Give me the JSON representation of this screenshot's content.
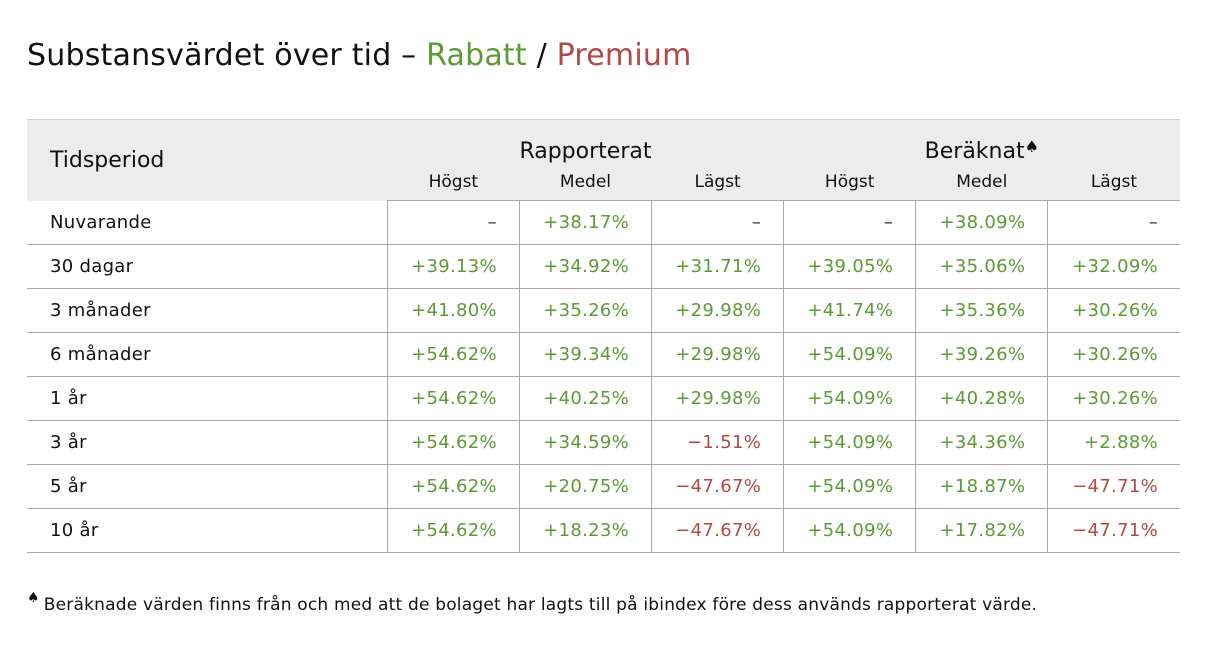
{
  "title": {
    "main": "Substansvärdet över tid – ",
    "rabatt": "Rabatt",
    "separator": " / ",
    "premium": "Premium"
  },
  "colors": {
    "positive": "#5b9a35",
    "negative": "#b04a43",
    "header_bg": "#ececec"
  },
  "table": {
    "period_header": "Tidsperiod",
    "group_reported": "Rapporterat",
    "group_calculated": "Beräknat",
    "group_calculated_marker": "♠",
    "sub_high": "Högst",
    "sub_mean": "Medel",
    "sub_low": "Lägst",
    "rows": [
      {
        "label": "Nuvarande",
        "cells": [
          {
            "v": "–",
            "s": "dash"
          },
          {
            "v": "+38.17%",
            "s": "pos"
          },
          {
            "v": "–",
            "s": "dash"
          },
          {
            "v": "–",
            "s": "dash"
          },
          {
            "v": "+38.09%",
            "s": "pos"
          },
          {
            "v": "–",
            "s": "dash"
          }
        ]
      },
      {
        "label": "30 dagar",
        "cells": [
          {
            "v": "+39.13%",
            "s": "pos"
          },
          {
            "v": "+34.92%",
            "s": "pos"
          },
          {
            "v": "+31.71%",
            "s": "pos"
          },
          {
            "v": "+39.05%",
            "s": "pos"
          },
          {
            "v": "+35.06%",
            "s": "pos"
          },
          {
            "v": "+32.09%",
            "s": "pos"
          }
        ]
      },
      {
        "label": "3 månader",
        "cells": [
          {
            "v": "+41.80%",
            "s": "pos"
          },
          {
            "v": "+35.26%",
            "s": "pos"
          },
          {
            "v": "+29.98%",
            "s": "pos"
          },
          {
            "v": "+41.74%",
            "s": "pos"
          },
          {
            "v": "+35.36%",
            "s": "pos"
          },
          {
            "v": "+30.26%",
            "s": "pos"
          }
        ]
      },
      {
        "label": "6 månader",
        "cells": [
          {
            "v": "+54.62%",
            "s": "pos"
          },
          {
            "v": "+39.34%",
            "s": "pos"
          },
          {
            "v": "+29.98%",
            "s": "pos"
          },
          {
            "v": "+54.09%",
            "s": "pos"
          },
          {
            "v": "+39.26%",
            "s": "pos"
          },
          {
            "v": "+30.26%",
            "s": "pos"
          }
        ]
      },
      {
        "label": "1 år",
        "cells": [
          {
            "v": "+54.62%",
            "s": "pos"
          },
          {
            "v": "+40.25%",
            "s": "pos"
          },
          {
            "v": "+29.98%",
            "s": "pos"
          },
          {
            "v": "+54.09%",
            "s": "pos"
          },
          {
            "v": "+40.28%",
            "s": "pos"
          },
          {
            "v": "+30.26%",
            "s": "pos"
          }
        ]
      },
      {
        "label": "3 år",
        "cells": [
          {
            "v": "+54.62%",
            "s": "pos"
          },
          {
            "v": "+34.59%",
            "s": "pos"
          },
          {
            "v": "−1.51%",
            "s": "neg"
          },
          {
            "v": "+54.09%",
            "s": "pos"
          },
          {
            "v": "+34.36%",
            "s": "pos"
          },
          {
            "v": "+2.88%",
            "s": "pos"
          }
        ]
      },
      {
        "label": "5 år",
        "cells": [
          {
            "v": "+54.62%",
            "s": "pos"
          },
          {
            "v": "+20.75%",
            "s": "pos"
          },
          {
            "v": "−47.67%",
            "s": "neg"
          },
          {
            "v": "+54.09%",
            "s": "pos"
          },
          {
            "v": "+18.87%",
            "s": "pos"
          },
          {
            "v": "−47.71%",
            "s": "neg"
          }
        ]
      },
      {
        "label": "10 år",
        "cells": [
          {
            "v": "+54.62%",
            "s": "pos"
          },
          {
            "v": "+18.23%",
            "s": "pos"
          },
          {
            "v": "−47.67%",
            "s": "neg"
          },
          {
            "v": "+54.09%",
            "s": "pos"
          },
          {
            "v": "+17.82%",
            "s": "pos"
          },
          {
            "v": "−47.71%",
            "s": "neg"
          }
        ]
      }
    ]
  },
  "footnote": {
    "marker": "♠",
    "text": "Beräknade värden finns från och med att de bolaget har lagts till på ibindex före dess används rapporterat värde."
  }
}
